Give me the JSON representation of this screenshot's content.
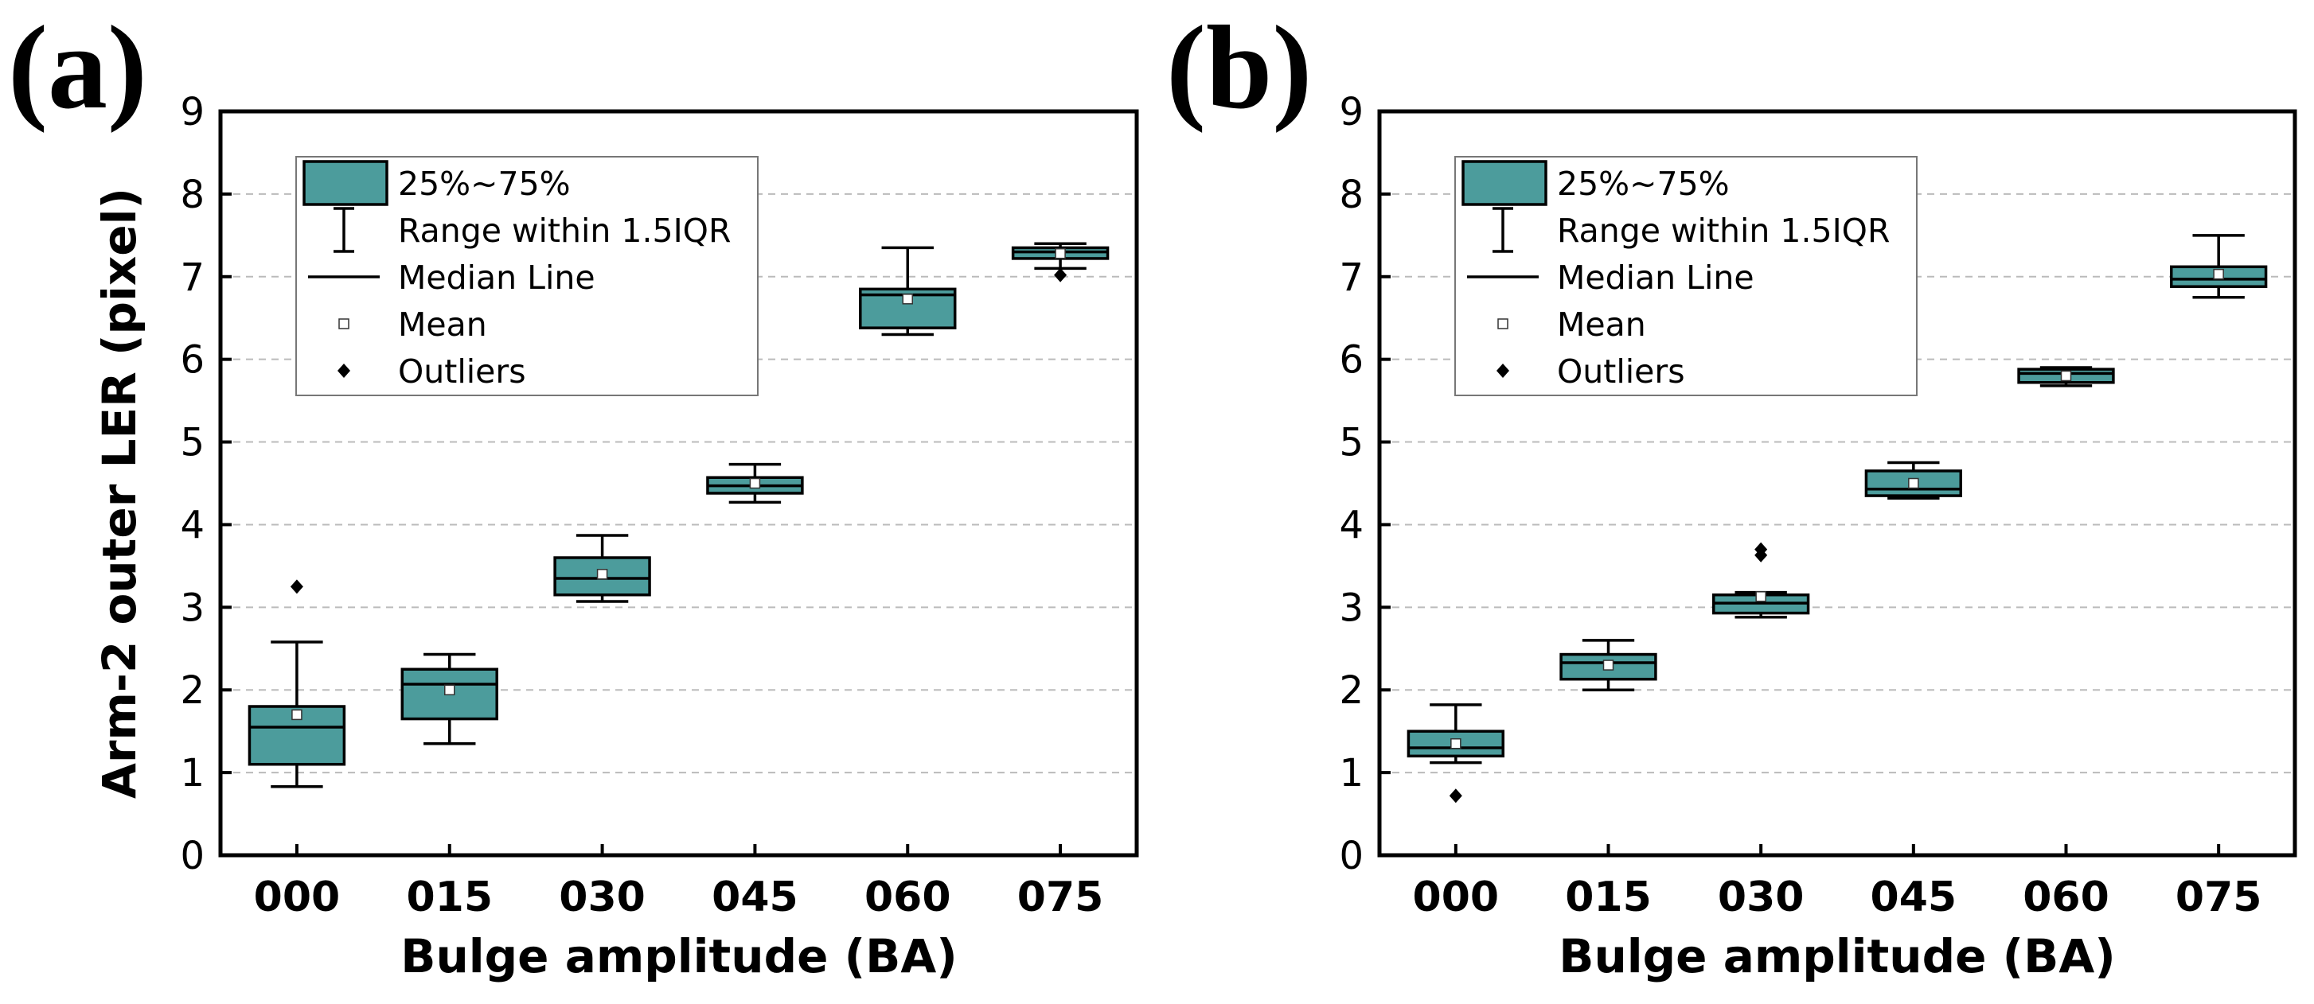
{
  "colors": {
    "box_fill": "#4C9C9C",
    "frame": "#000000",
    "grid": "#BBBBBB"
  },
  "panel_labels": [
    "(a)",
    "(b)"
  ],
  "legend_items": [
    {
      "key": "box",
      "label": "25%~75%"
    },
    {
      "key": "whisker",
      "label": "Range within 1.5IQR"
    },
    {
      "key": "median",
      "label": "Median Line"
    },
    {
      "key": "mean",
      "label": "Mean"
    },
    {
      "key": "outlier",
      "label": "Outliers"
    }
  ],
  "chart_data": [
    {
      "type": "box",
      "panel": "(a)",
      "title": "",
      "xlabel": "Bulge amplitude (BA)",
      "ylabel": "Arm-2 outer LER (pixel)",
      "ylim": [
        0,
        9
      ],
      "yticks": [
        0,
        1,
        2,
        3,
        4,
        5,
        6,
        7,
        8,
        9
      ],
      "grid": "horizontal-dashed",
      "legend_placement": "top-left",
      "categories": [
        "000",
        "015",
        "030",
        "045",
        "060",
        "075"
      ],
      "boxes": [
        {
          "whisker_low": 0.83,
          "q1": 1.1,
          "median": 1.55,
          "q3": 1.8,
          "whisker_high": 2.58,
          "mean": 1.7,
          "outliers": [
            3.25
          ]
        },
        {
          "whisker_low": 1.35,
          "q1": 1.65,
          "median": 2.07,
          "q3": 2.25,
          "whisker_high": 2.43,
          "mean": 2.0,
          "outliers": []
        },
        {
          "whisker_low": 3.07,
          "q1": 3.15,
          "median": 3.35,
          "q3": 3.6,
          "whisker_high": 3.87,
          "mean": 3.4,
          "outliers": []
        },
        {
          "whisker_low": 4.27,
          "q1": 4.38,
          "median": 4.47,
          "q3": 4.57,
          "whisker_high": 4.73,
          "mean": 4.5,
          "outliers": []
        },
        {
          "whisker_low": 6.3,
          "q1": 6.38,
          "median": 6.78,
          "q3": 6.85,
          "whisker_high": 7.35,
          "mean": 6.73,
          "outliers": []
        },
        {
          "whisker_low": 7.1,
          "q1": 7.22,
          "median": 7.3,
          "q3": 7.35,
          "whisker_high": 7.4,
          "mean": 7.28,
          "outliers": [
            7.02
          ]
        }
      ]
    },
    {
      "type": "box",
      "panel": "(b)",
      "title": "",
      "xlabel": "Bulge amplitude (BA)",
      "ylabel": "",
      "ylim": [
        0,
        9
      ],
      "yticks": [
        0,
        1,
        2,
        3,
        4,
        5,
        6,
        7,
        8,
        9
      ],
      "grid": "horizontal-dashed",
      "legend_placement": "top-left",
      "categories": [
        "000",
        "015",
        "030",
        "045",
        "060",
        "075"
      ],
      "boxes": [
        {
          "whisker_low": 1.12,
          "q1": 1.2,
          "median": 1.3,
          "q3": 1.5,
          "whisker_high": 1.82,
          "mean": 1.35,
          "outliers": [
            0.72
          ]
        },
        {
          "whisker_low": 2.0,
          "q1": 2.13,
          "median": 2.33,
          "q3": 2.43,
          "whisker_high": 2.6,
          "mean": 2.3,
          "outliers": []
        },
        {
          "whisker_low": 2.88,
          "q1": 2.93,
          "median": 3.05,
          "q3": 3.15,
          "whisker_high": 3.18,
          "mean": 3.13,
          "outliers": [
            3.63,
            3.7
          ]
        },
        {
          "whisker_low": 4.32,
          "q1": 4.35,
          "median": 4.43,
          "q3": 4.65,
          "whisker_high": 4.75,
          "mean": 4.5,
          "outliers": []
        },
        {
          "whisker_low": 5.68,
          "q1": 5.72,
          "median": 5.83,
          "q3": 5.88,
          "whisker_high": 5.9,
          "mean": 5.8,
          "outliers": []
        },
        {
          "whisker_low": 6.75,
          "q1": 6.88,
          "median": 6.97,
          "q3": 7.12,
          "whisker_high": 7.5,
          "mean": 7.03,
          "outliers": []
        }
      ]
    }
  ]
}
